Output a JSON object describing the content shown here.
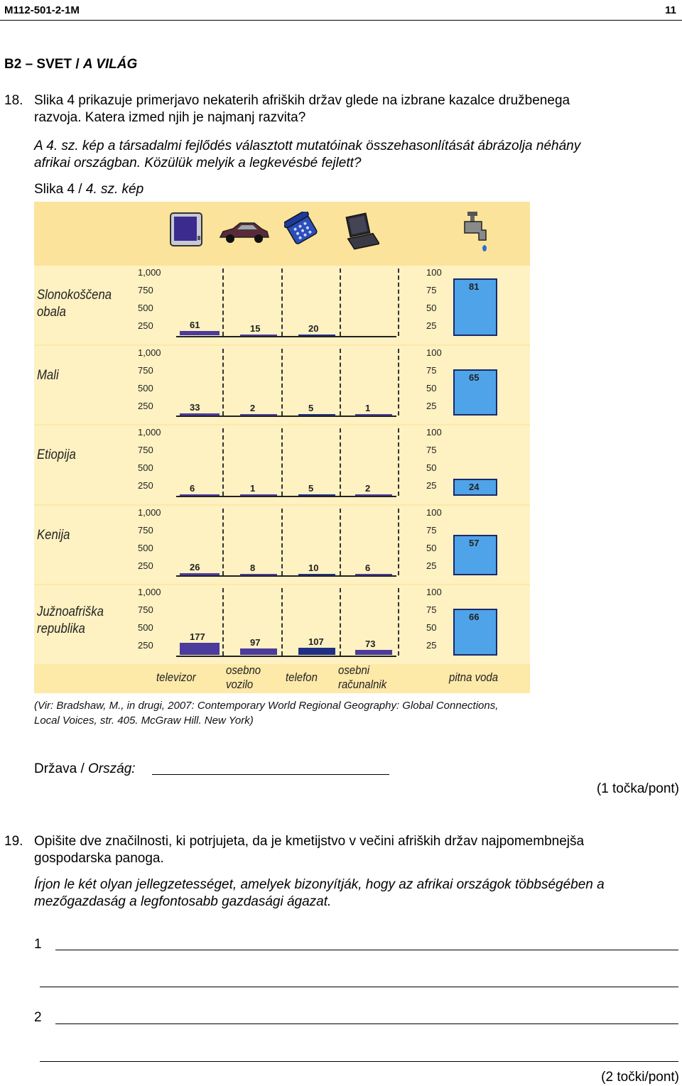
{
  "header": {
    "code": "M112-501-2-1M",
    "page": "11"
  },
  "section": {
    "title_sl": "B2 – SVET /",
    "title_hu": "A VILÁG"
  },
  "q18": {
    "number": "18.",
    "text_sl_1": "Slika 4 prikazuje primerjavo nekaterih afriških držav glede na izbrane kazalce družbenega",
    "text_sl_2": "razvoja. Katera izmed njih je najmanj razvita?",
    "text_hu_1": "A 4. sz. kép a társadalmi fejlődés választott mutatóinak összehasonlítását ábrázolja néhány",
    "text_hu_2": "afrikai országban. Közülük melyik a legkevésbé fejlett?",
    "caption_sl": "Slika 4 /",
    "caption_hu": "4. sz. kép",
    "source_1": "(Vir: Bradshaw, M., in drugi, 2007: Contemporary World Regional Geography: Global Connections,",
    "source_2": "Local Voices, str. 405. McGraw Hill. New York)",
    "answer_label_sl": "Država /",
    "answer_label_hu": "Ország:",
    "points": "(1 točka/pont)"
  },
  "q19": {
    "number": "19.",
    "text_sl_1": "Opišite dve značilnosti, ki potrjujeta, da je kmetijstvo v večini afriških držav najpomembnejša",
    "text_sl_2": "gospodarska panoga.",
    "text_hu_1": "Írjon le két olyan jellegzetességet, amelyek bizonyítják, hogy az afrikai országok többségében a",
    "text_hu_2": "mezőgazdaság a legfontosabb gazdasági ágazat.",
    "line1": "1",
    "line2": "2",
    "points": "(2 točki/pont)"
  },
  "chart_data": {
    "type": "bar",
    "categories": [
      "televizor",
      "osebno vozilo",
      "telefon",
      "osebni računalnik",
      "pitna voda"
    ],
    "left_axis_ticks": [
      "1,000",
      "750",
      "500",
      "250"
    ],
    "right_axis_ticks": [
      "100",
      "75",
      "50",
      "25"
    ],
    "left_ylim": [
      0,
      1000
    ],
    "right_ylim": [
      0,
      100
    ],
    "colors": {
      "purple": "#4b3b9c",
      "navy": "#1f2f86",
      "water": "#4fa3e8"
    },
    "icons": [
      "tv-icon",
      "car-icon",
      "telephone-icon",
      "laptop-icon",
      "water-tap-icon"
    ],
    "series": [
      {
        "name": "Slonokoščena obala",
        "values": [
          61,
          15,
          20,
          null,
          81
        ]
      },
      {
        "name": "Mali",
        "values": [
          33,
          2,
          5,
          1,
          65
        ]
      },
      {
        "name": "Etiopija",
        "values": [
          6,
          1,
          5,
          2,
          24
        ]
      },
      {
        "name": "Kenija",
        "values": [
          26,
          8,
          10,
          6,
          57
        ]
      },
      {
        "name": "Južnoafriška republika",
        "values": [
          177,
          97,
          107,
          73,
          66
        ]
      }
    ]
  }
}
